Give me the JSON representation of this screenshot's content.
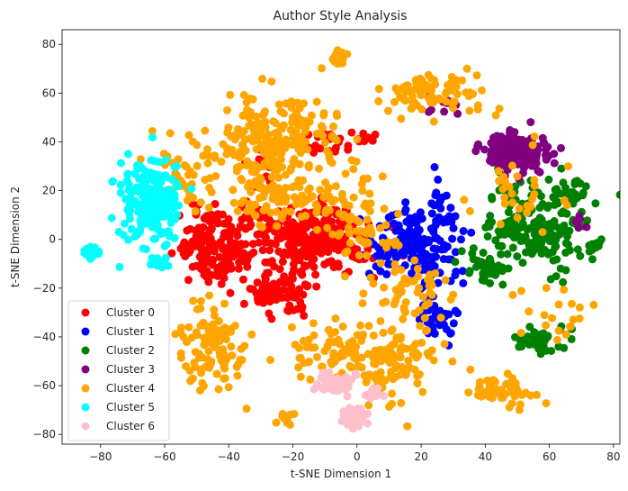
{
  "chart_data": {
    "type": "scatter",
    "title": "Author Style Analysis",
    "xlabel": "t-SNE Dimension 1",
    "ylabel": "t-SNE Dimension 2",
    "xlim": [
      -92,
      82
    ],
    "ylim": [
      -84,
      86
    ],
    "xticks": [
      -80,
      -60,
      -40,
      -20,
      0,
      20,
      40,
      60,
      80
    ],
    "yticks": [
      -80,
      -60,
      -40,
      -20,
      0,
      20,
      40,
      60,
      80
    ],
    "grid": false,
    "legend_position": "lower-left",
    "series": [
      {
        "name": "Cluster 0",
        "color": "#ff0000",
        "blobs": [
          {
            "cx": -43,
            "cy": -2,
            "sx": 7,
            "sy": 8,
            "n": 180
          },
          {
            "cx": -14,
            "cy": 0,
            "sx": 9,
            "sy": 7,
            "n": 280
          },
          {
            "cx": -25,
            "cy": -22,
            "sx": 5,
            "sy": 4,
            "n": 80
          },
          {
            "cx": -10,
            "cy": 38,
            "sx": 4,
            "sy": 3,
            "n": 20
          },
          {
            "cx": 3,
            "cy": 42,
            "sx": 3,
            "sy": 2,
            "n": 10
          },
          {
            "cx": -30,
            "cy": 30,
            "sx": 4,
            "sy": 3,
            "n": 12
          }
        ]
      },
      {
        "name": "Cluster 1",
        "color": "#0000ff",
        "blobs": [
          {
            "cx": 18,
            "cy": -2,
            "sx": 7,
            "sy": 7,
            "n": 170
          },
          {
            "cx": 25,
            "cy": -32,
            "sx": 4,
            "sy": 6,
            "n": 40
          },
          {
            "cx": 26,
            "cy": 15,
            "sx": 2,
            "sy": 5,
            "n": 20
          }
        ]
      },
      {
        "name": "Cluster 2",
        "color": "#008000",
        "blobs": [
          {
            "cx": 57,
            "cy": 5,
            "sx": 8,
            "sy": 9,
            "n": 200
          },
          {
            "cx": 40,
            "cy": -10,
            "sx": 5,
            "sy": 4,
            "n": 40
          },
          {
            "cx": 58,
            "cy": -42,
            "sx": 4,
            "sy": 3,
            "n": 40
          },
          {
            "cx": 68,
            "cy": 20,
            "sx": 2,
            "sy": 3,
            "n": 20
          },
          {
            "cx": 74,
            "cy": -3,
            "sx": 1,
            "sy": 1,
            "n": 8
          }
        ]
      },
      {
        "name": "Cluster 3",
        "color": "#800080",
        "blobs": [
          {
            "cx": 50,
            "cy": 36,
            "sx": 5,
            "sy": 4,
            "n": 180
          },
          {
            "cx": 27,
            "cy": 54,
            "sx": 3,
            "sy": 2,
            "n": 10
          },
          {
            "cx": 68,
            "cy": 8,
            "sx": 2,
            "sy": 2,
            "n": 6
          }
        ]
      },
      {
        "name": "Cluster 4",
        "color": "#ffa500",
        "blobs": [
          {
            "cx": -25,
            "cy": 40,
            "sx": 10,
            "sy": 9,
            "n": 200
          },
          {
            "cx": -20,
            "cy": 18,
            "sx": 12,
            "sy": 6,
            "n": 120
          },
          {
            "cx": -45,
            "cy": -45,
            "sx": 5,
            "sy": 9,
            "n": 100
          },
          {
            "cx": -8,
            "cy": -45,
            "sx": 7,
            "sy": 6,
            "n": 70
          },
          {
            "cx": 12,
            "cy": -50,
            "sx": 7,
            "sy": 8,
            "n": 100
          },
          {
            "cx": 25,
            "cy": 60,
            "sx": 10,
            "sy": 5,
            "n": 80
          },
          {
            "cx": 45,
            "cy": -62,
            "sx": 5,
            "sy": 3,
            "n": 50
          },
          {
            "cx": -5,
            "cy": 75,
            "sx": 2,
            "sy": 2,
            "n": 20
          },
          {
            "cx": 60,
            "cy": -30,
            "sx": 6,
            "sy": 6,
            "n": 20
          },
          {
            "cx": 15,
            "cy": -20,
            "sx": 8,
            "sy": 6,
            "n": 50
          },
          {
            "cx": -55,
            "cy": 25,
            "sx": 6,
            "sy": 8,
            "n": 40
          },
          {
            "cx": 50,
            "cy": 18,
            "sx": 8,
            "sy": 8,
            "n": 30
          },
          {
            "cx": -22,
            "cy": -73,
            "sx": 2,
            "sy": 2,
            "n": 10
          },
          {
            "cx": 0,
            "cy": 0,
            "sx": 6,
            "sy": 6,
            "n": 40
          }
        ]
      },
      {
        "name": "Cluster 5",
        "color": "#00ffff",
        "blobs": [
          {
            "cx": -64,
            "cy": 16,
            "sx": 5,
            "sy": 9,
            "n": 180
          },
          {
            "cx": -83,
            "cy": -5,
            "sx": 1.3,
            "sy": 1.3,
            "n": 25
          },
          {
            "cx": -62,
            "cy": -10,
            "sx": 2,
            "sy": 1,
            "n": 15
          }
        ]
      },
      {
        "name": "Cluster 6",
        "color": "#ffc0cb",
        "blobs": [
          {
            "cx": -7,
            "cy": -60,
            "sx": 3,
            "sy": 2,
            "n": 50
          },
          {
            "cx": -1,
            "cy": -73,
            "sx": 2,
            "sy": 2,
            "n": 40
          },
          {
            "cx": 5,
            "cy": -63,
            "sx": 1.3,
            "sy": 1.3,
            "n": 15
          }
        ]
      }
    ]
  }
}
